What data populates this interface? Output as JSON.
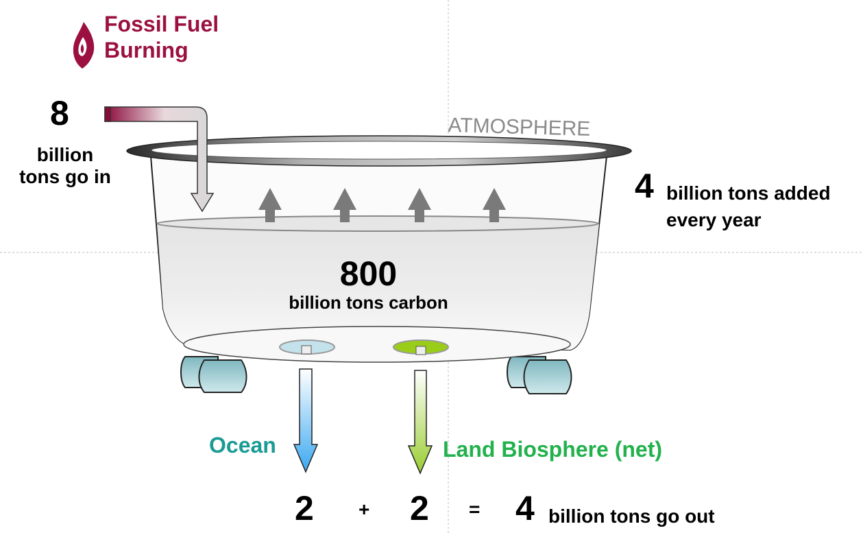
{
  "fossil": {
    "title_line1": "Fossil Fuel",
    "title_line2": "Burning"
  },
  "inflow": {
    "value": "8",
    "label_line1": "billion",
    "label_line2": "tons go in"
  },
  "atmosphere": {
    "label": "ATMOSPHERE"
  },
  "added": {
    "value": "4",
    "label_line1": "billion tons added",
    "label_line2": "every year"
  },
  "stock": {
    "value": "800",
    "label": "billion tons carbon"
  },
  "sinks": {
    "ocean": {
      "label": "Ocean"
    },
    "land": {
      "label": "Land Biosphere (net)"
    }
  },
  "equation": {
    "ocean_value": "2",
    "plus": "+",
    "land_value": "2",
    "equals": "=",
    "total": "4",
    "label": "billion tons go out"
  },
  "colors": {
    "fossil": "#9b1040",
    "ocean_text": "#1a9b94",
    "land_text": "#22b14c",
    "ocean_arrow": "#3aa8f0",
    "land_arrow": "#9acd32",
    "atmosphere_text": "#8a8a8a",
    "feet": "#a8d4d9"
  }
}
